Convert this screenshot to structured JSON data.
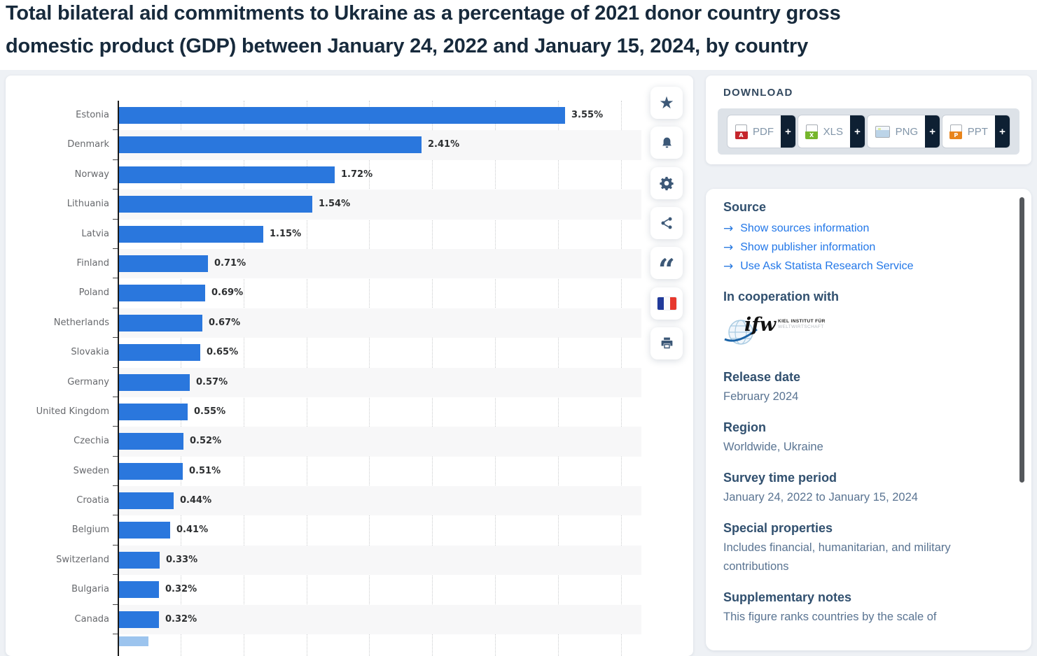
{
  "header": {
    "title_line1": "Total bilateral aid commitments to Ukraine as a percentage of 2021 donor country gross",
    "title_line2": "domestic product (GDP) between January 24, 2022 and January 15, 2024, by country"
  },
  "chart_data": {
    "type": "bar",
    "orientation": "horizontal",
    "title": "Total bilateral aid commitments to Ukraine as a percentage of 2021 donor country gross domestic product (GDP) between January 24, 2022 and January 15, 2024, by country",
    "categories": [
      "Estonia",
      "Denmark",
      "Norway",
      "Lithuania",
      "Latvia",
      "Finland",
      "Poland",
      "Netherlands",
      "Slovakia",
      "Germany",
      "United Kingdom",
      "Czechia",
      "Sweden",
      "Croatia",
      "Belgium",
      "Switzerland",
      "Bulgaria",
      "Canada"
    ],
    "values": [
      3.55,
      2.41,
      1.72,
      1.54,
      1.15,
      0.71,
      0.69,
      0.67,
      0.65,
      0.57,
      0.55,
      0.52,
      0.51,
      0.44,
      0.41,
      0.33,
      0.32,
      0.32
    ],
    "value_labels": [
      "3.55%",
      "2.41%",
      "1.72%",
      "1.54%",
      "1.15%",
      "0.71%",
      "0.69%",
      "0.67%",
      "0.65%",
      "0.57%",
      "0.55%",
      "0.52%",
      "0.51%",
      "0.44%",
      "0.41%",
      "0.33%",
      "0.32%",
      "0.32%"
    ],
    "unit": "%",
    "xlim": [
      0,
      4
    ],
    "gridline_step": 0.5,
    "grid": "dotted-vertical",
    "bar_color": "#2a77dd",
    "partial_next_bar_visible": true
  },
  "toolbar": {
    "items": [
      {
        "name": "favorite",
        "icon": "star-icon"
      },
      {
        "name": "alerts",
        "icon": "bell-icon"
      },
      {
        "name": "settings",
        "icon": "gear-icon"
      },
      {
        "name": "share",
        "icon": "share-icon"
      },
      {
        "name": "citation",
        "icon": "quote-icon"
      },
      {
        "name": "language-french",
        "icon": "french-flag-icon"
      },
      {
        "name": "print",
        "icon": "printer-icon"
      }
    ]
  },
  "download": {
    "heading": "DOWNLOAD",
    "plus_label": "+",
    "buttons": [
      {
        "label": "PDF",
        "icon": "pdf-file-icon"
      },
      {
        "label": "XLS",
        "icon": "xls-file-icon"
      },
      {
        "label": "PNG",
        "icon": "png-file-icon"
      },
      {
        "label": "PPT",
        "icon": "ppt-file-icon"
      }
    ]
  },
  "sidebar": {
    "source_heading": "Source",
    "links": [
      "Show sources information",
      "Show publisher information",
      "Use Ask Statista Research Service"
    ],
    "cooperation_heading": "In cooperation with",
    "cooperation_logo": {
      "name": "ifw-kiel-institute-logo",
      "text_main": "ifw",
      "text_line1": "KIEL INSTITUT FÜR",
      "text_line2": "WELTWIRTSCHAFT"
    },
    "meta": [
      {
        "heading": "Release date",
        "value": "February 2024"
      },
      {
        "heading": "Region",
        "value": "Worldwide, Ukraine"
      },
      {
        "heading": "Survey time period",
        "value": "January 24, 2022 to January 15, 2024"
      },
      {
        "heading": "Special properties",
        "value": "Includes financial, humanitarian, and military contributions"
      },
      {
        "heading": "Supplementary notes",
        "value": "This figure ranks countries by the scale of"
      }
    ]
  },
  "colors": {
    "bar": "#2a77dd",
    "link": "#2277e8",
    "heading": "#31506f",
    "plus_tab": "#0e2033",
    "stripe": "#f7f7f8"
  }
}
